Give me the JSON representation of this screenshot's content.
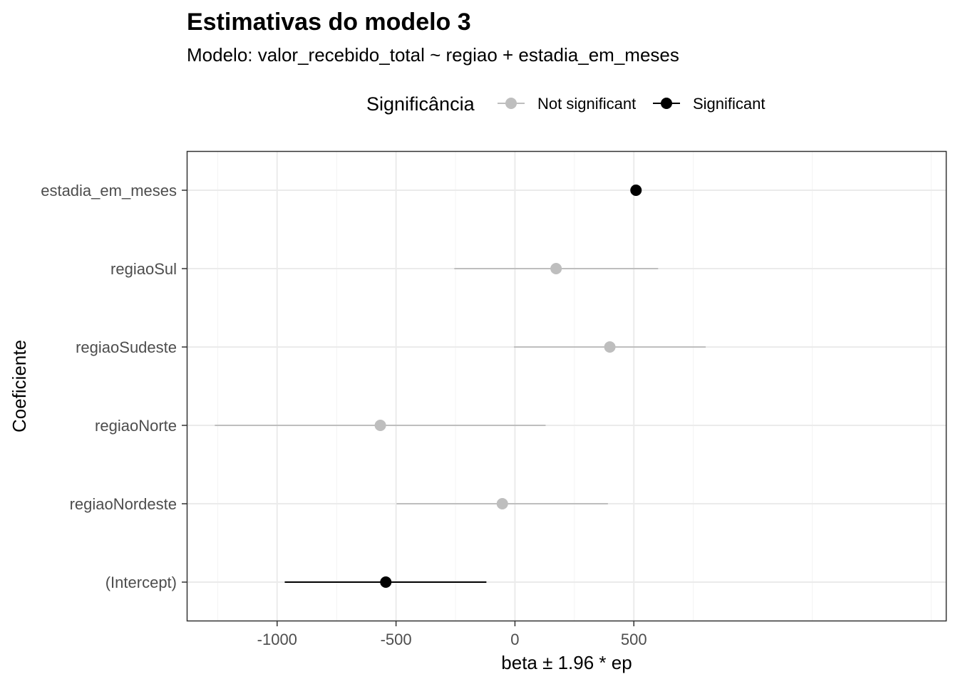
{
  "chart_data": {
    "type": "scatter",
    "title": "Estimativas do modelo 3",
    "subtitle": "Modelo: valor_recebido_total ~ regiao + estadia_em_meses",
    "xlabel": "beta ± 1.96 * ep",
    "ylabel": "Coeficiente",
    "xlim": [
      -1380,
      1815
    ],
    "x_ticks": [
      {
        "value": -1000,
        "label": "-1000"
      },
      {
        "value": -500,
        "label": "-500"
      },
      {
        "value": 0,
        "label": "0"
      },
      {
        "value": 500,
        "label": "500"
      }
    ],
    "grid": true,
    "legend": {
      "title": "Significância",
      "position": "top",
      "items": [
        {
          "label": "Not significant",
          "color": "#bebebe"
        },
        {
          "label": "Significant",
          "color": "#000000"
        }
      ]
    },
    "categories": [
      "(Intercept)",
      "regiaoNordeste",
      "regiaoNorte",
      "regiaoSudeste",
      "regiaoSul",
      "estadia_em_meses"
    ],
    "points": [
      {
        "term": "(Intercept)",
        "estimate": -543,
        "lower": -968,
        "upper": -120,
        "significance": "Significant"
      },
      {
        "term": "regiaoNordeste",
        "estimate": -53,
        "lower": -498,
        "upper": 391,
        "significance": "Not significant"
      },
      {
        "term": "regiaoNorte",
        "estimate": -566,
        "lower": -1262,
        "upper": 129,
        "significance": "Not significant"
      },
      {
        "term": "regiaoSudeste",
        "estimate": 399,
        "lower": -4,
        "upper": 802,
        "significance": "Not significant"
      },
      {
        "term": "regiaoSul",
        "estimate": 173,
        "lower": -255,
        "upper": 602,
        "significance": "Not significant"
      },
      {
        "term": "estadia_em_meses",
        "estimate": 509,
        "lower": 503,
        "upper": 515,
        "significance": "Significant"
      }
    ]
  }
}
